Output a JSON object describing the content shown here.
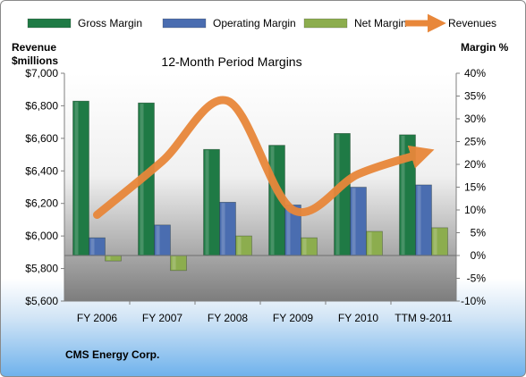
{
  "legend": [
    {
      "label": "Gross Margin",
      "color": "#1f7a45"
    },
    {
      "label": "Operating Margin",
      "color": "#4a6db0"
    },
    {
      "label": "Net Margin",
      "color": "#8cad4e"
    },
    {
      "label": "Revenues",
      "color": "#e8873a"
    }
  ],
  "footer": "CMS Energy Corp.",
  "chart_data": {
    "type": "bar",
    "title": "12-Month Period Margins",
    "ylabel_left": "Revenue $millions",
    "ylabel_right": "Margin %",
    "categories": [
      "FY 2006",
      "FY 2007",
      "FY 2008",
      "FY 2009",
      "FY 2010",
      "TTM 9-2011"
    ],
    "y_left": {
      "min": 5600,
      "max": 7000,
      "step": 200,
      "ticks": [
        "$5,600",
        "$5,800",
        "$6,000",
        "$6,200",
        "$6,400",
        "$6,600",
        "$6,800",
        "$7,000"
      ]
    },
    "y_right": {
      "min": -10,
      "max": 40,
      "step": 5,
      "ticks": [
        "-10%",
        "-5%",
        "0%",
        "5%",
        "10%",
        "15%",
        "20%",
        "25%",
        "30%",
        "35%",
        "40%"
      ]
    },
    "grid": false,
    "legend_position": "top",
    "series": [
      {
        "name": "Gross Margin",
        "axis": "right",
        "kind": "bar",
        "color": "#1f7a45",
        "values": [
          33.9,
          33.5,
          23.3,
          24.2,
          26.8,
          26.5
        ]
      },
      {
        "name": "Operating Margin",
        "axis": "right",
        "kind": "bar",
        "color": "#4a6db0",
        "values": [
          3.9,
          6.7,
          11.7,
          11.1,
          15.0,
          15.5
        ]
      },
      {
        "name": "Net Margin",
        "axis": "right",
        "kind": "bar",
        "color": "#8cad4e",
        "values": [
          -1.2,
          -3.3,
          4.3,
          3.9,
          5.3,
          6.1
        ]
      },
      {
        "name": "Revenues",
        "axis": "left",
        "kind": "line",
        "color": "#e8873a",
        "values": [
          6130,
          6460,
          6830,
          6160,
          6380,
          6510
        ]
      }
    ]
  }
}
